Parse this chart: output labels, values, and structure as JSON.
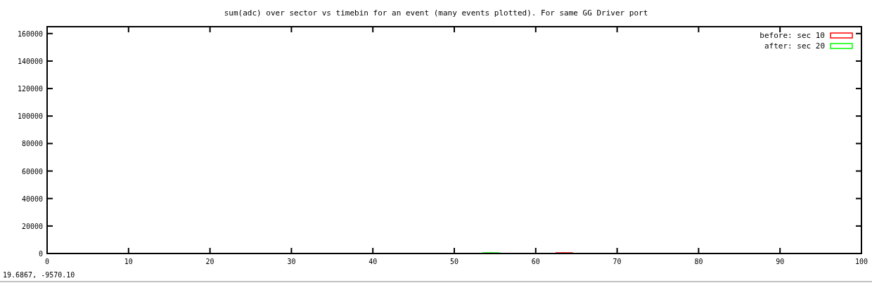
{
  "chart_data": {
    "type": "bar",
    "title": "sum(adc) over sector vs timebin for an event (many events plotted).  For same GG Driver port",
    "series": [
      {
        "name": "before: sec 10",
        "color": "#ff0000",
        "x": [
          63,
          64
        ],
        "values": [
          500,
          500
        ]
      },
      {
        "name": "after: sec 20",
        "color": "#00ff00",
        "x": [
          54,
          55
        ],
        "values": [
          500,
          500
        ]
      }
    ],
    "xlim": [
      0,
      100
    ],
    "xticks": [
      0,
      10,
      20,
      30,
      40,
      50,
      60,
      70,
      80,
      90,
      100
    ],
    "ylim": [
      0,
      165000
    ],
    "yticks": [
      0,
      20000,
      40000,
      60000,
      80000,
      100000,
      120000,
      140000,
      160000
    ],
    "legend": "top right",
    "grid": false,
    "annotations": [
      "19.6867, -9570.10"
    ]
  }
}
